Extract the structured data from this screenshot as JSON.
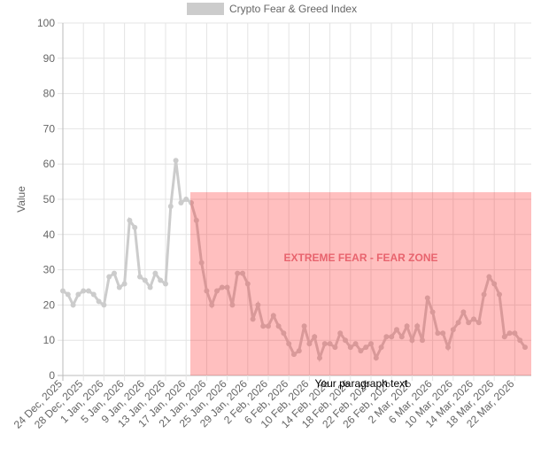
{
  "chart_data": {
    "type": "line",
    "legend": "Crypto Fear & Greed Index",
    "y_label": "Value",
    "color": "#cccccc",
    "grid": true,
    "ylim": [
      0,
      100
    ],
    "yticks": [
      0,
      10,
      20,
      30,
      40,
      50,
      60,
      70,
      80,
      90,
      100
    ],
    "categories": [
      "24 Dec, 2025",
      null,
      null,
      null,
      "28 Dec, 2025",
      null,
      null,
      null,
      "1 Jan, 2026",
      null,
      null,
      null,
      "5 Jan, 2026",
      null,
      null,
      null,
      "9 Jan, 2026",
      null,
      null,
      null,
      "13 Jan, 2026",
      null,
      null,
      null,
      "17 Jan, 2026",
      null,
      null,
      null,
      "21 Jan, 2026",
      null,
      null,
      null,
      "25 Jan, 2026",
      null,
      null,
      null,
      "29 Jan, 2026",
      null,
      null,
      null,
      "2 Feb, 2026",
      null,
      null,
      null,
      "6 Feb, 2026",
      null,
      null,
      null,
      "10 Feb, 2026",
      null,
      null,
      null,
      "14 Feb, 2026",
      null,
      null,
      null,
      "18 Feb, 2026",
      null,
      null,
      null,
      "22 Feb, 2026",
      null,
      null,
      null,
      "26 Feb, 2026",
      null,
      null,
      null,
      "2 Mar, 2026",
      null,
      null,
      null,
      "6 Mar, 2026",
      null,
      null,
      null,
      "10 Mar, 2026",
      null,
      null,
      null,
      "14 Mar, 2026",
      null,
      null,
      null,
      "18 Mar, 2026",
      null,
      null,
      null,
      "22 Mar, 2026",
      null,
      null
    ],
    "values": [
      24,
      23,
      20,
      23,
      24,
      24,
      23,
      21,
      20,
      28,
      29,
      25,
      26,
      44,
      42,
      28,
      27,
      25,
      29,
      27,
      26,
      48,
      61,
      49,
      50,
      49,
      44,
      32,
      24,
      20,
      24,
      25,
      25,
      20,
      29,
      29,
      26,
      16,
      20,
      14,
      14,
      17,
      14,
      12,
      9,
      6,
      7,
      14,
      9,
      11,
      5,
      9,
      9,
      8,
      12,
      10,
      8,
      9,
      7,
      8,
      9,
      5,
      8,
      11,
      11,
      13,
      11,
      14,
      10,
      14,
      10,
      22,
      18,
      12,
      12,
      8,
      13,
      15,
      18,
      15,
      16,
      15,
      23,
      28,
      26,
      23,
      11,
      12,
      12,
      10,
      8
    ],
    "zone": {
      "label": "EXTREME FEAR - FEAR ZONE",
      "x_start": 25,
      "y_max": 52,
      "color": "rgba(255,0,0,0.25)"
    },
    "overlay_text": "Your paragraph text"
  }
}
